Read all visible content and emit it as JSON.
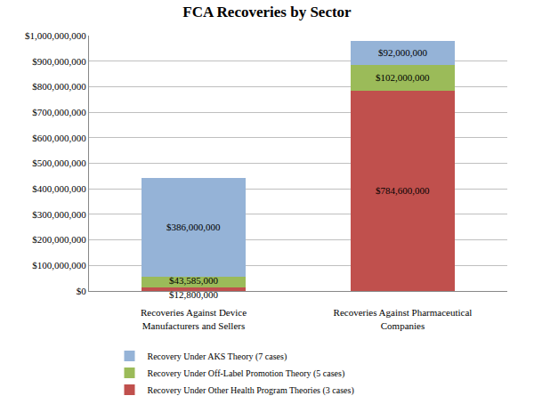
{
  "chart_data": {
    "type": "bar",
    "title": "FCA Recoveries by Sector",
    "categories": [
      "Recoveries Against Device Manufacturers and Sellers",
      "Recoveries Against Pharmaceutical Companies"
    ],
    "series": [
      {
        "name": "Recovery Under Other Health Program Theories (3 cases)",
        "color": "#c0504d",
        "values": [
          12800000,
          784600000
        ],
        "value_labels": [
          "$12,800,000",
          "$784,600,000"
        ]
      },
      {
        "name": "Recovery Under Off-Label Promotion Theory (5 cases)",
        "color": "#9bbb59",
        "values": [
          43585000,
          102000000
        ],
        "value_labels": [
          "$43,585,000",
          "$102,000,000"
        ]
      },
      {
        "name": "Recovery Under AKS Theory (7 cases)",
        "color": "#95b3d7",
        "values": [
          386000000,
          92000000
        ],
        "value_labels": [
          "$386,000,000",
          "$92,000,000"
        ]
      }
    ],
    "ylim": [
      0,
      1000000000
    ],
    "yticks": [
      {
        "value": 0,
        "label": "$0"
      },
      {
        "value": 100000000,
        "label": "$100,000,000"
      },
      {
        "value": 200000000,
        "label": "$200,000,000"
      },
      {
        "value": 300000000,
        "label": "$300,000,000"
      },
      {
        "value": 400000000,
        "label": "$400,000,000"
      },
      {
        "value": 500000000,
        "label": "$500,000,000"
      },
      {
        "value": 600000000,
        "label": "$600,000,000"
      },
      {
        "value": 700000000,
        "label": "$700,000,000"
      },
      {
        "value": 800000000,
        "label": "$800,000,000"
      },
      {
        "value": 900000000,
        "label": "$900,000,000"
      },
      {
        "value": 1000000000,
        "label": "$1,000,000,000"
      }
    ],
    "grid": true,
    "stacked": true,
    "data_labels": true,
    "legend": "bottom"
  }
}
